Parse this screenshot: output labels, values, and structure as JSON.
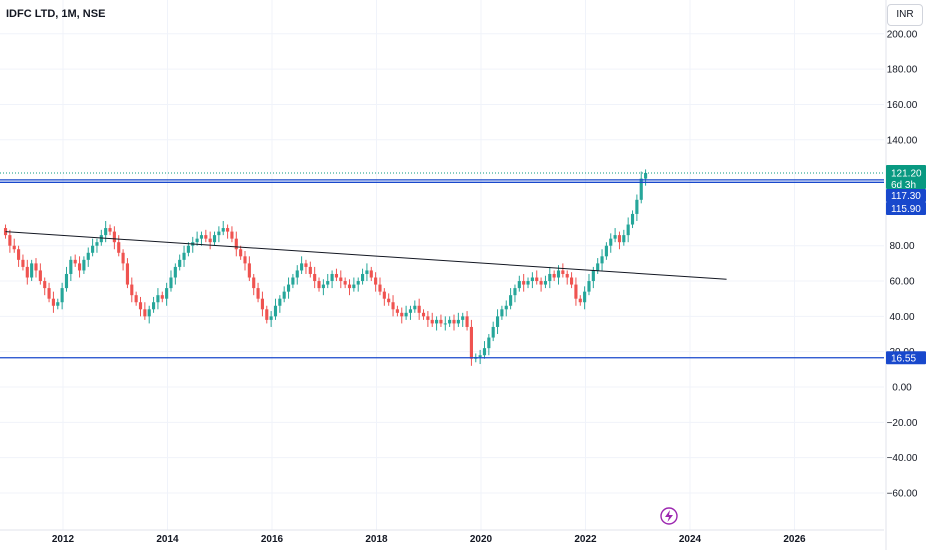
{
  "header": {
    "title": "IDFC LTD, 1M, NSE",
    "currency": "INR"
  },
  "chart_data": {
    "type": "candlestick",
    "symbol": "IDFC LTD",
    "interval": "1M",
    "exchange": "NSE",
    "ylim": [
      -70,
      210
    ],
    "y_ticks": [
      200,
      180,
      160,
      140,
      80,
      60,
      40,
      20,
      0,
      -20,
      -40,
      -60
    ],
    "y_tick_labels": [
      "200.00",
      "180.00",
      "160.00",
      "140.00",
      "80.00",
      "60.00",
      "40.00",
      "20.00",
      "0.00",
      "−20.00",
      "−40.00",
      "−60.00"
    ],
    "x_ticks": [
      2012,
      2014,
      2016,
      2018,
      2020,
      2022,
      2024,
      2026
    ],
    "x_range": [
      2010.9,
      2027.6
    ],
    "grid": true,
    "colors": {
      "up": "#26a69a",
      "down": "#ef5350",
      "level": "#1848cc",
      "trend": "#131722",
      "last": "#089981",
      "grid": "#f0f3fa",
      "flash": "#9c27b0"
    },
    "last_price": {
      "value": 121.2,
      "label": "121.20",
      "countdown": "6d 3h"
    },
    "levels": [
      {
        "value": 117.3,
        "label": "117.30"
      },
      {
        "value": 115.9,
        "label": "115.90"
      },
      {
        "value": 16.55,
        "label": "16.55"
      }
    ],
    "trendline": {
      "from": [
        2010.9,
        88
      ],
      "to": [
        2024.7,
        61
      ]
    },
    "monthly_close": [
      86,
      80,
      78,
      72,
      68,
      62,
      70,
      66,
      60,
      56,
      50,
      46,
      48,
      56,
      64,
      72,
      70,
      66,
      72,
      76,
      80,
      82,
      86,
      90,
      88,
      82,
      76,
      70,
      58,
      52,
      48,
      44,
      40,
      44,
      48,
      52,
      50,
      56,
      62,
      68,
      72,
      76,
      80,
      82,
      84,
      86,
      84,
      82,
      86,
      88,
      90,
      88,
      84,
      78,
      74,
      70,
      62,
      56,
      50,
      44,
      38,
      40,
      46,
      50,
      54,
      58,
      62,
      66,
      70,
      68,
      64,
      60,
      56,
      58,
      60,
      64,
      62,
      60,
      58,
      56,
      58,
      60,
      64,
      66,
      62,
      58,
      54,
      50,
      48,
      44,
      42,
      40,
      42,
      44,
      46,
      42,
      40,
      38,
      36,
      38,
      36,
      36,
      38,
      36,
      38,
      40,
      34,
      16,
      17,
      18,
      22,
      28,
      34,
      40,
      44,
      46,
      52,
      56,
      60,
      58,
      60,
      62,
      60,
      58,
      60,
      64,
      62,
      66,
      64,
      62,
      58,
      50,
      48,
      54,
      60,
      66,
      70,
      74,
      80,
      84,
      86,
      82,
      86,
      92,
      98,
      106,
      118,
      121.2
    ]
  }
}
